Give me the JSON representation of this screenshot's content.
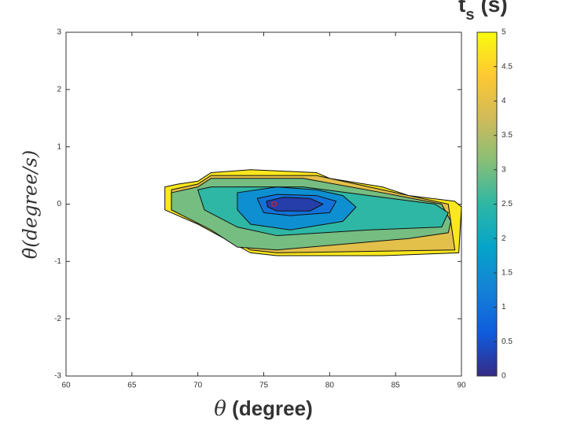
{
  "chart_data": {
    "type": "contour",
    "xlabel_symbol": "θ",
    "xlabel_unit": "(degree)",
    "ylabel": "θ̇(degree/s)",
    "colorbar_label": "t",
    "colorbar_label_sub": "s",
    "colorbar_label_unit": "(s)",
    "xlim": [
      60,
      90
    ],
    "xticks": [
      60,
      65,
      70,
      75,
      80,
      85,
      90
    ],
    "ylim": [
      -3,
      3
    ],
    "yticks": [
      -3,
      -2,
      -1,
      0,
      1,
      2,
      3
    ],
    "clim": [
      0,
      5
    ],
    "cticks": [
      0,
      0.5,
      1,
      1.5,
      2,
      2.5,
      3,
      3.5,
      4,
      4.5,
      5
    ],
    "colormap": [
      "#352A87",
      "#0F5CDD",
      "#1481D6",
      "#06A4CA",
      "#2EB7A4",
      "#87BF77",
      "#D1BB59",
      "#FEC832",
      "#F9FB0E"
    ],
    "contours": [
      {
        "level": 4.75,
        "x": [
          67.5,
          68.5,
          70,
          71,
          74,
          79,
          80,
          84,
          86,
          89.5,
          90,
          89.8,
          84,
          76,
          74,
          72,
          70,
          67.5
        ],
        "y": [
          0.3,
          0.35,
          0.4,
          0.55,
          0.6,
          0.55,
          0.45,
          0.3,
          0.15,
          0.05,
          -0.05,
          -0.85,
          -0.9,
          -0.9,
          -0.85,
          -0.6,
          -0.35,
          -0.1
        ]
      },
      {
        "level": 4,
        "x": [
          68,
          70,
          71,
          79,
          84,
          89,
          89.5,
          76,
          74,
          72,
          68
        ],
        "y": [
          0.25,
          0.35,
          0.5,
          0.5,
          0.25,
          0,
          -0.8,
          -0.85,
          -0.8,
          -0.55,
          -0.1
        ]
      },
      {
        "level": 3,
        "x": [
          68,
          70,
          71,
          78,
          84,
          88.5,
          89.2,
          89,
          86,
          76,
          73,
          71,
          68
        ],
        "y": [
          0.2,
          0.3,
          0.45,
          0.45,
          0.2,
          0,
          -0.3,
          -0.5,
          -0.6,
          -0.8,
          -0.75,
          -0.45,
          -0.1
        ]
      },
      {
        "level": 2.5,
        "x": [
          70,
          71,
          78,
          83,
          88,
          89,
          88.5,
          83,
          76,
          73,
          70.5
        ],
        "y": [
          0.25,
          0.3,
          0.3,
          0.15,
          0,
          -0.15,
          -0.4,
          -0.45,
          -0.55,
          -0.4,
          -0.1
        ]
      },
      {
        "level": 1.5,
        "x": [
          73,
          76,
          79,
          81,
          82,
          81,
          77,
          74,
          73
        ],
        "y": [
          0.2,
          0.3,
          0.25,
          0.15,
          -0.05,
          -0.3,
          -0.45,
          -0.35,
          -0.1
        ]
      },
      {
        "level": 1,
        "x": [
          74.5,
          76,
          79,
          80.5,
          80,
          77,
          75
        ],
        "y": [
          0.1,
          0.17,
          0.15,
          0.05,
          -0.15,
          -0.2,
          -0.15
        ]
      },
      {
        "level": 0.25,
        "x": [
          75.2,
          76.5,
          78.5,
          79.5,
          78.5,
          76,
          75.3
        ],
        "y": [
          0.05,
          0.12,
          0.1,
          0,
          -0.12,
          -0.12,
          -0.05
        ]
      }
    ],
    "marker": {
      "x": 75.8,
      "y": 0,
      "color": "#e02020"
    }
  }
}
